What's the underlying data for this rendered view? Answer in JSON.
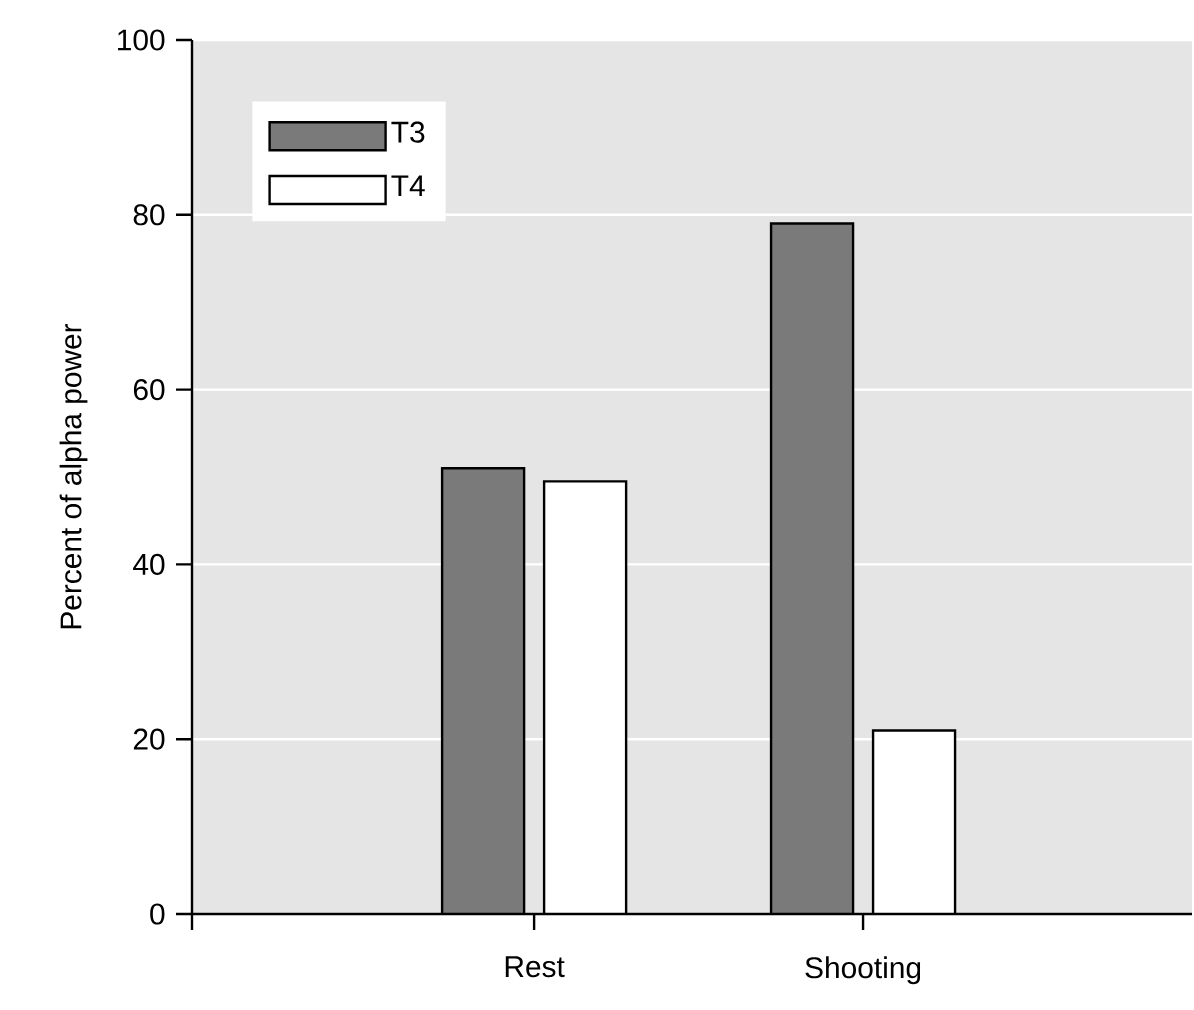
{
  "chart_data": {
    "type": "bar",
    "ylabel": "Percent of alpha power",
    "categories": [
      "Rest",
      "Shooting"
    ],
    "series": [
      {
        "name": "T3",
        "color": "#7a7a7a",
        "values": [
          51,
          79
        ]
      },
      {
        "name": "T4",
        "color": "#ffffff",
        "values": [
          49.5,
          21
        ]
      }
    ],
    "ylim": [
      0,
      100
    ],
    "yticks": [
      0,
      20,
      40,
      60,
      80,
      100
    ],
    "grid": "y",
    "legend": "top left"
  }
}
